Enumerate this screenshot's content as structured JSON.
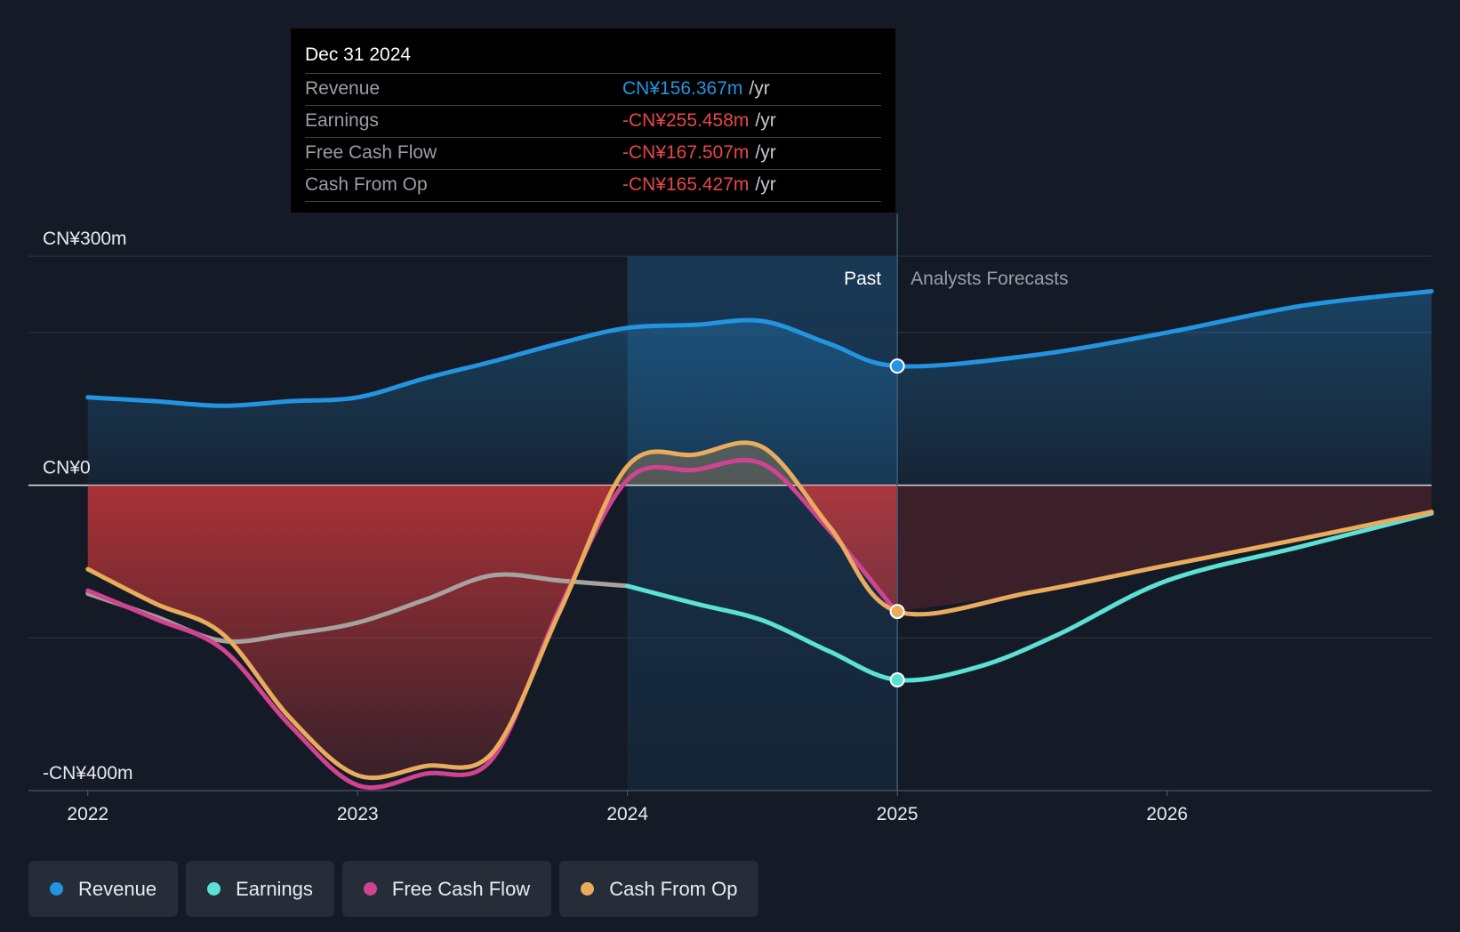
{
  "tooltip": {
    "date": "Dec 31 2024",
    "rows": [
      {
        "label": "Revenue",
        "value": "CN¥156.367m",
        "unit": "/yr",
        "color": "#2394df"
      },
      {
        "label": "Earnings",
        "value": "-CN¥255.458m",
        "unit": "/yr",
        "color": "#e64848"
      },
      {
        "label": "Free Cash Flow",
        "value": "-CN¥167.507m",
        "unit": "/yr",
        "color": "#e64848"
      },
      {
        "label": "Cash From Op",
        "value": "-CN¥165.427m",
        "unit": "/yr",
        "color": "#e64848"
      }
    ]
  },
  "legend": [
    {
      "label": "Revenue",
      "color": "#2394df"
    },
    {
      "label": "Earnings",
      "color": "#5ce1d5"
    },
    {
      "label": "Free Cash Flow",
      "color": "#d14391"
    },
    {
      "label": "Cash From Op",
      "color": "#e9ab5c"
    }
  ],
  "chart_data": {
    "type": "line",
    "y_labels": [
      {
        "value": 300,
        "text": "CN¥300m"
      },
      {
        "value": 0,
        "text": "CN¥0"
      },
      {
        "value": -400,
        "text": "-CN¥400m"
      }
    ],
    "ylim": [
      -400,
      300
    ],
    "xlim": [
      2021.78,
      2026.98
    ],
    "x_ticks": [
      {
        "value": 2022,
        "text": "2022"
      },
      {
        "value": 2023,
        "text": "2023"
      },
      {
        "value": 2024,
        "text": "2024"
      },
      {
        "value": 2025,
        "text": "2025"
      },
      {
        "value": 2026,
        "text": "2026"
      }
    ],
    "gridlines": [
      300,
      200,
      0,
      -200,
      -400
    ],
    "past_region": {
      "from": 2024.0,
      "to": 2025.0
    },
    "divider_x": 2025.0,
    "past_label": "Past",
    "forecast_label": "Analysts Forecasts",
    "series": [
      {
        "name": "Revenue",
        "color": "#2394df",
        "x": [
          2022.0,
          2022.25,
          2022.5,
          2022.75,
          2023.0,
          2023.25,
          2023.5,
          2023.75,
          2024.0,
          2024.25,
          2024.5,
          2024.75,
          2025.0,
          2025.5,
          2026.0,
          2026.5,
          2026.98
        ],
        "y": [
          115,
          110,
          104,
          110,
          115,
          140,
          162,
          186,
          206,
          210,
          215,
          185,
          156,
          170,
          200,
          235,
          254
        ]
      },
      {
        "name": "Earnings",
        "color": "#5ce1d5",
        "past_color": "#a8a29e",
        "past_until": 2024.0,
        "x": [
          2022.0,
          2022.25,
          2022.5,
          2022.75,
          2023.0,
          2023.25,
          2023.5,
          2023.75,
          2024.0,
          2024.25,
          2024.5,
          2024.75,
          2025.0,
          2025.3,
          2025.6,
          2026.0,
          2026.5,
          2026.98
        ],
        "y": [
          -142,
          -172,
          -204,
          -195,
          -180,
          -150,
          -118,
          -125,
          -132,
          -155,
          -177,
          -218,
          -255,
          -238,
          -195,
          -125,
          -80,
          -37
        ]
      },
      {
        "name": "Free Cash Flow",
        "color": "#d14391",
        "x": [
          2022.0,
          2022.25,
          2022.5,
          2022.75,
          2023.0,
          2023.25,
          2023.5,
          2023.75,
          2024.0,
          2024.25,
          2024.5,
          2024.75,
          2025.0
        ],
        "y": [
          -138,
          -175,
          -215,
          -315,
          -393,
          -378,
          -358,
          -160,
          7,
          20,
          28,
          -60,
          -167.5
        ]
      },
      {
        "name": "Cash From Op",
        "color": "#e9ab5c",
        "x": [
          2022.0,
          2022.25,
          2022.5,
          2022.75,
          2023.0,
          2023.25,
          2023.5,
          2023.75,
          2024.0,
          2024.25,
          2024.5,
          2024.75,
          2025.0,
          2025.5,
          2026.0,
          2026.5,
          2026.98
        ],
        "y": [
          -110,
          -155,
          -195,
          -305,
          -380,
          -368,
          -350,
          -165,
          25,
          40,
          50,
          -55,
          -165.4,
          -140,
          -105,
          -70,
          -35
        ]
      }
    ]
  }
}
